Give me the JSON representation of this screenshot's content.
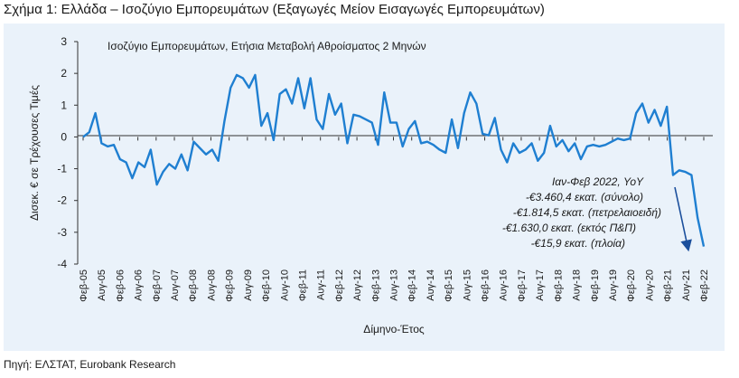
{
  "figure_title": "Σχήμα 1: Ελλάδα – Ισοζύγιο Εμπορευμάτων (Εξαγωγές Μείον Εισαγωγές Εμπορευμάτων)",
  "source": "Πηγή: ΕΛΣΤΑΤ, Eurobank Research",
  "colors": {
    "line": "#1f7fd1",
    "arrow": "#1b4f9c",
    "panel_bg": "#eaf2fa"
  },
  "annotation": {
    "lines": [
      "Ιαν-Φεβ 2022, YoY",
      "-€3.460,4 εκατ. (σύνολο)",
      "-€1.814,5 εκατ. (πετρελαιοειδή)",
      "-€1.630,0 εκατ. (εκτός Π&Π)",
      "-€15,9 εκατ. (πλοία)"
    ]
  },
  "chart_data": {
    "type": "line",
    "title": "Ισοζύγιο Εμπορευμάτων, Ετήσια Μεταβολή Αθροίσματος 2 Μηνών",
    "xlabel": "Δίμηνο-Έτος",
    "ylabel": "Δισεκ. € σε Τρέχουσες Τιμές",
    "ylim": [
      -4,
      3
    ],
    "yticks": [
      3,
      2,
      1,
      0,
      -1,
      -2,
      -3,
      -4
    ],
    "xtick_labels": [
      "Φεβ-05",
      "Αυγ-05",
      "Φεβ-06",
      "Αυγ-06",
      "Φεβ-07",
      "Αυγ-07",
      "Φεβ-08",
      "Αυγ-08",
      "Φεβ-09",
      "Αυγ-09",
      "Φεβ-10",
      "Αυγ-10",
      "Φεβ-11",
      "Αυγ-11",
      "Φεβ-12",
      "Αυγ-12",
      "Φεβ-13",
      "Αυγ-13",
      "Φεβ-14",
      "Αυγ-14",
      "Φεβ-15",
      "Αυγ-15",
      "Φεβ-16",
      "Αυγ-16",
      "Φεβ-17",
      "Αυγ-17",
      "Φεβ-18",
      "Αυγ-18",
      "Φεβ-19",
      "Αυγ-19",
      "Φεβ-20",
      "Αυγ-20",
      "Φεβ-21",
      "Αυγ-21",
      "Φεβ-22"
    ],
    "grid": false,
    "series": [
      {
        "values": [
          0.0,
          0.15,
          0.75,
          -0.2,
          -0.3,
          -0.25,
          -0.7,
          -0.8,
          -1.3,
          -0.8,
          -0.95,
          -0.4,
          -1.5,
          -1.1,
          -0.85,
          -1.0,
          -0.55,
          -1.05,
          -0.15,
          -0.35,
          -0.55,
          -0.4,
          -0.75,
          0.5,
          1.55,
          1.95,
          1.85,
          1.55,
          1.95,
          0.35,
          0.75,
          -0.1,
          1.35,
          1.5,
          1.05,
          1.85,
          0.9,
          1.85,
          0.55,
          0.25,
          1.35,
          0.7,
          1.05,
          -0.2,
          0.7,
          0.65,
          0.55,
          0.45,
          -0.25,
          1.4,
          0.45,
          0.45,
          -0.3,
          0.25,
          0.5,
          -0.2,
          -0.15,
          -0.25,
          -0.4,
          -0.5,
          0.55,
          -0.35,
          0.75,
          1.4,
          1.05,
          0.1,
          0.05,
          0.6,
          -0.4,
          -0.8,
          -0.2,
          -0.5,
          -0.4,
          -0.2,
          -0.75,
          -0.5,
          0.35,
          -0.3,
          -0.1,
          -0.45,
          -0.2,
          -0.7,
          -0.3,
          -0.25,
          -0.3,
          -0.25,
          -0.15,
          -0.05,
          -0.1,
          -0.05,
          0.75,
          1.05,
          0.45,
          0.85,
          0.35,
          0.95,
          -1.2,
          -1.05,
          -1.1,
          -1.2,
          -2.55,
          -3.45
        ]
      }
    ]
  }
}
